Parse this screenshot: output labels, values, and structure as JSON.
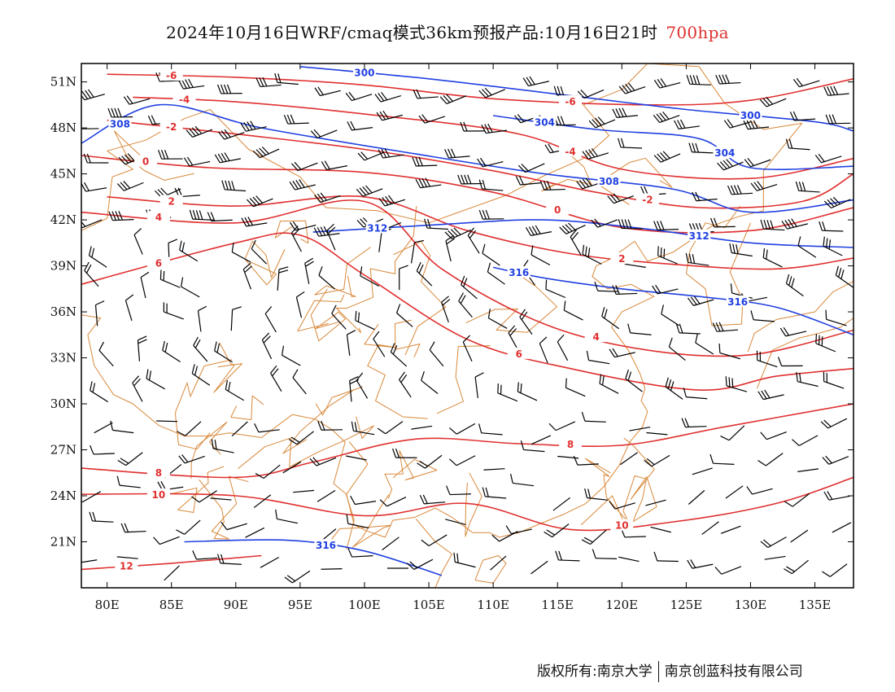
{
  "title": {
    "text": "2024年10月16日WRF/cmaq模式36km预报产品:10月16日21时",
    "level": "700hpa",
    "level_color": "#e03030"
  },
  "map": {
    "lon_range": [
      78,
      138
    ],
    "lat_range": [
      18,
      52.2
    ],
    "lon_ticks": [
      "80E",
      "85E",
      "90E",
      "95E",
      "100E",
      "105E",
      "110E",
      "115E",
      "120E",
      "125E",
      "130E",
      "135E"
    ],
    "lat_ticks": [
      "51N",
      "48N",
      "45N",
      "42N",
      "39N",
      "36N",
      "33N",
      "30N",
      "27N",
      "24N",
      "21N"
    ],
    "colors": {
      "temperature": "#e03030",
      "height": "#2040e0",
      "boundary": "#d8883a",
      "wind": "#000000"
    }
  },
  "temperature_contours": [
    {
      "label": "-6",
      "points": [
        [
          80,
          51.5
        ],
        [
          90,
          51.3
        ],
        [
          100,
          50.8
        ],
        [
          110,
          49.9
        ],
        [
          122,
          49.5
        ],
        [
          130,
          49.8
        ],
        [
          138,
          51.2
        ]
      ]
    },
    {
      "label": "-4",
      "points": [
        [
          82,
          50
        ],
        [
          90,
          49.7
        ],
        [
          100,
          48.9
        ],
        [
          112,
          47.6
        ],
        [
          120,
          45.3
        ],
        [
          130,
          44.7
        ],
        [
          138,
          46
        ]
      ]
    },
    {
      "label": "-2",
      "points": [
        [
          80,
          48.5
        ],
        [
          90,
          47.6
        ],
        [
          100,
          46.6
        ],
        [
          110,
          45.2
        ],
        [
          118,
          43.8
        ],
        [
          126,
          42.8
        ],
        [
          134,
          43.2
        ],
        [
          138,
          45
        ]
      ]
    },
    {
      "label": "0",
      "points": [
        [
          78,
          46.2
        ],
        [
          88,
          45.4
        ],
        [
          100,
          45.1
        ],
        [
          110,
          43.8
        ],
        [
          120,
          41.5
        ],
        [
          130,
          41.3
        ],
        [
          138,
          42.8
        ]
      ]
    },
    {
      "label": "2",
      "points": [
        [
          80,
          43.5
        ],
        [
          90,
          42.9
        ],
        [
          100,
          43.5
        ],
        [
          108,
          41.3
        ],
        [
          116,
          39.8
        ],
        [
          124,
          39.1
        ],
        [
          132,
          38.8
        ],
        [
          138,
          39.5
        ]
      ]
    },
    {
      "label": "4",
      "points": [
        [
          78,
          42.5
        ],
        [
          90,
          41.8
        ],
        [
          100,
          43.2
        ],
        [
          106,
          38.8
        ],
        [
          114,
          35.2
        ],
        [
          122,
          33.5
        ],
        [
          130,
          33.2
        ],
        [
          138,
          34.8
        ]
      ]
    },
    {
      "label": "6",
      "points": [
        [
          78,
          37.8
        ],
        [
          90,
          40.5
        ],
        [
          95,
          41
        ],
        [
          100,
          38.4
        ],
        [
          108,
          34.2
        ],
        [
          116,
          32.3
        ],
        [
          126,
          30.9
        ],
        [
          132,
          31.8
        ],
        [
          138,
          32.3
        ]
      ]
    },
    {
      "label": "8",
      "points": [
        [
          78,
          25.8
        ],
        [
          90,
          25.2
        ],
        [
          96,
          26.2
        ],
        [
          104,
          27.7
        ],
        [
          112,
          27.4
        ],
        [
          120,
          27.3
        ],
        [
          128,
          28.5
        ],
        [
          138,
          30
        ]
      ]
    },
    {
      "label": "10",
      "points": [
        [
          78,
          24.1
        ],
        [
          90,
          24
        ],
        [
          100,
          22.7
        ],
        [
          108,
          23.5
        ],
        [
          116,
          21.8
        ],
        [
          124,
          22.3
        ],
        [
          132,
          23.5
        ],
        [
          138,
          25.2
        ]
      ]
    },
    {
      "label": "12",
      "points": [
        [
          78,
          19.2
        ],
        [
          85,
          19.6
        ],
        [
          92,
          20.1
        ]
      ]
    }
  ],
  "height_contours": [
    {
      "label": "300",
      "points": [
        [
          95,
          52
        ],
        [
          105,
          51.2
        ],
        [
          115,
          50.2
        ],
        [
          125,
          49.2
        ],
        [
          135,
          48.4
        ],
        [
          138,
          47.8
        ]
      ]
    },
    {
      "label": "304",
      "points": [
        [
          110,
          48.8
        ],
        [
          118,
          47.9
        ],
        [
          126,
          47.3
        ],
        [
          130,
          45.4
        ],
        [
          138,
          45.5
        ]
      ]
    },
    {
      "label": "308",
      "points": [
        [
          78,
          47
        ],
        [
          84,
          49.5
        ],
        [
          92,
          48
        ],
        [
          104,
          46.3
        ],
        [
          114,
          45
        ],
        [
          124,
          44
        ],
        [
          130,
          42.5
        ],
        [
          138,
          43.3
        ]
      ]
    },
    {
      "label": "312",
      "points": [
        [
          96,
          41.2
        ],
        [
          106,
          41.7
        ],
        [
          114,
          42
        ],
        [
          122,
          41.4
        ],
        [
          130,
          40.5
        ],
        [
          138,
          40.2
        ]
      ]
    },
    {
      "label": "316",
      "points": [
        [
          110,
          38.9
        ],
        [
          114,
          38.2
        ],
        [
          120,
          37.5
        ],
        [
          126,
          37
        ],
        [
          132,
          36.3
        ],
        [
          138,
          34.5
        ]
      ]
    },
    {
      "label": "316",
      "points": [
        [
          86,
          21
        ],
        [
          94,
          21.1
        ],
        [
          100,
          20.4
        ],
        [
          106,
          18.8
        ]
      ]
    }
  ],
  "copyright": {
    "left": "版权所有:南京大学",
    "right": "南京创蓝科技有限公司"
  }
}
